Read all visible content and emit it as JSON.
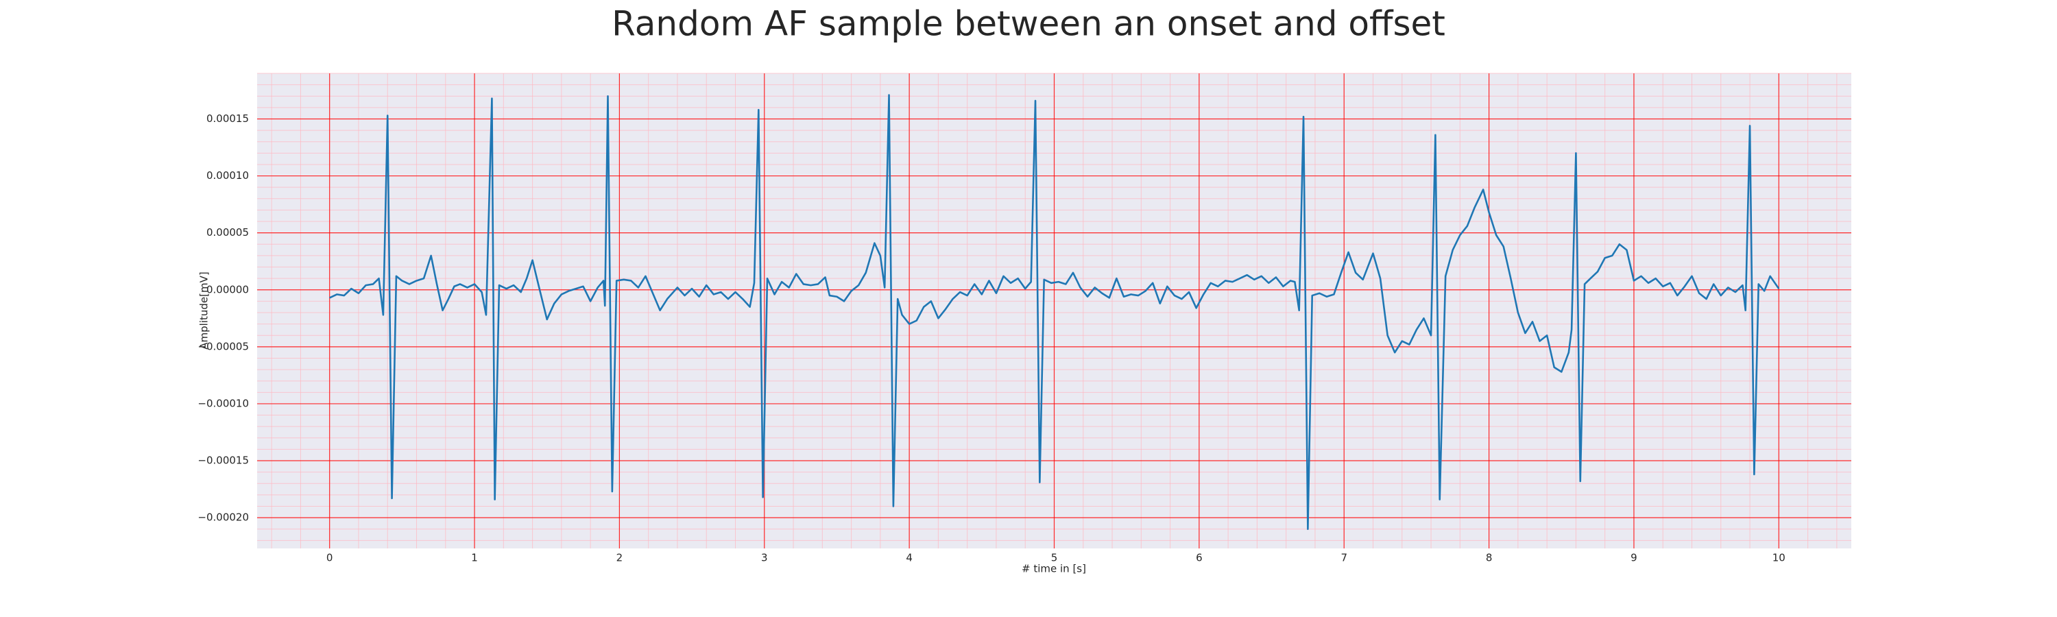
{
  "chart_data": {
    "type": "line",
    "title": "Random AF sample between an onset and offset",
    "xlabel": "# time in [s]",
    "ylabel": "Amplitude[mV]",
    "color": "#1f77b4",
    "background": "#eaeaf2",
    "grid": true,
    "grid_color": "#ff0000",
    "minor_grid": true,
    "minor_grid_color": "#ffb6c1",
    "xlim": [
      -0.5,
      10.5
    ],
    "ylim": [
      -0.000227,
      0.00019
    ],
    "xticks": [
      0,
      1,
      2,
      3,
      4,
      5,
      6,
      7,
      8,
      9,
      10
    ],
    "yticks": [
      {
        "value": -0.0002,
        "label": "−0.00020"
      },
      {
        "value": -0.00015,
        "label": "−0.00015"
      },
      {
        "value": -0.0001,
        "label": "−0.00010"
      },
      {
        "value": -5e-05,
        "label": "−0.00005"
      },
      {
        "value": 0,
        "label": "0.00000"
      },
      {
        "value": 5e-05,
        "label": "0.00005"
      },
      {
        "value": 0.0001,
        "label": "0.00010"
      },
      {
        "value": 0.00015,
        "label": "0.00015"
      }
    ],
    "x": [
      0.0,
      0.05,
      0.1,
      0.15,
      0.2,
      0.25,
      0.3,
      0.34,
      0.37,
      0.4,
      0.43,
      0.46,
      0.5,
      0.55,
      0.6,
      0.65,
      0.7,
      0.74,
      0.78,
      0.82,
      0.86,
      0.9,
      0.95,
      1.0,
      1.05,
      1.08,
      1.12,
      1.14,
      1.17,
      1.22,
      1.27,
      1.32,
      1.36,
      1.4,
      1.44,
      1.5,
      1.55,
      1.6,
      1.65,
      1.7,
      1.75,
      1.8,
      1.85,
      1.89,
      1.9,
      1.92,
      1.95,
      1.98,
      2.03,
      2.08,
      2.13,
      2.18,
      2.23,
      2.28,
      2.33,
      2.4,
      2.45,
      2.5,
      2.55,
      2.6,
      2.65,
      2.7,
      2.75,
      2.8,
      2.85,
      2.9,
      2.93,
      2.96,
      2.99,
      3.02,
      3.07,
      3.12,
      3.17,
      3.22,
      3.27,
      3.32,
      3.37,
      3.42,
      3.45,
      3.5,
      3.55,
      3.6,
      3.65,
      3.7,
      3.76,
      3.8,
      3.83,
      3.86,
      3.89,
      3.92,
      3.95,
      4.0,
      4.05,
      4.1,
      4.15,
      4.2,
      4.25,
      4.3,
      4.35,
      4.4,
      4.45,
      4.5,
      4.55,
      4.6,
      4.65,
      4.7,
      4.75,
      4.8,
      4.84,
      4.87,
      4.9,
      4.93,
      4.98,
      5.03,
      5.08,
      5.13,
      5.18,
      5.23,
      5.28,
      5.33,
      5.38,
      5.43,
      5.48,
      5.53,
      5.58,
      5.63,
      5.68,
      5.73,
      5.78,
      5.83,
      5.88,
      5.93,
      5.98,
      6.03,
      6.08,
      6.13,
      6.18,
      6.23,
      6.28,
      6.33,
      6.38,
      6.43,
      6.48,
      6.53,
      6.58,
      6.63,
      6.66,
      6.69,
      6.72,
      6.75,
      6.78,
      6.83,
      6.88,
      6.93,
      6.98,
      7.03,
      7.08,
      7.13,
      7.2,
      7.25,
      7.3,
      7.35,
      7.4,
      7.45,
      7.5,
      7.55,
      7.6,
      7.63,
      7.66,
      7.7,
      7.75,
      7.8,
      7.85,
      7.9,
      7.96,
      8.0,
      8.05,
      8.1,
      8.15,
      8.2,
      8.25,
      8.3,
      8.35,
      8.4,
      8.45,
      8.5,
      8.55,
      8.57,
      8.6,
      8.63,
      8.66,
      8.7,
      8.75,
      8.8,
      8.85,
      8.9,
      8.95,
      9.0,
      9.05,
      9.1,
      9.15,
      9.2,
      9.25,
      9.3,
      9.35,
      9.4,
      9.45,
      9.5,
      9.55,
      9.6,
      9.65,
      9.7,
      9.75,
      9.77,
      9.8,
      9.83,
      9.86,
      9.9,
      9.94,
      10.0
    ],
    "values": [
      -7e-06,
      -4e-06,
      -5e-06,
      1e-06,
      -3e-06,
      4e-06,
      5e-06,
      1e-05,
      -2.2e-05,
      0.000153,
      -0.000183,
      1.2e-05,
      8e-06,
      5e-06,
      8e-06,
      1e-05,
      3e-05,
      5e-06,
      -1.8e-05,
      -8e-06,
      3e-06,
      5e-06,
      2e-06,
      5e-06,
      -2e-06,
      -2.2e-05,
      0.000168,
      -0.000184,
      4e-06,
      1e-06,
      4e-06,
      -2e-06,
      1e-05,
      2.6e-05,
      5e-06,
      -2.6e-05,
      -1.2e-05,
      -4e-06,
      -1e-06,
      1e-06,
      3e-06,
      -1e-05,
      2e-06,
      8e-06,
      -1.4e-05,
      0.00017,
      -0.000177,
      8e-06,
      9e-06,
      8e-06,
      2e-06,
      1.2e-05,
      -3e-06,
      -1.8e-05,
      -8e-06,
      2e-06,
      -5e-06,
      1e-06,
      -6e-06,
      4e-06,
      -4e-06,
      -2e-06,
      -8e-06,
      -2e-06,
      -8e-06,
      -1.5e-05,
      6e-06,
      0.000158,
      -0.000182,
      1e-05,
      -4e-06,
      7e-06,
      2e-06,
      1.4e-05,
      5e-06,
      4e-06,
      5e-06,
      1.1e-05,
      -5e-06,
      -6e-06,
      -1e-05,
      -1e-06,
      4e-06,
      1.5e-05,
      4.1e-05,
      3e-05,
      2e-06,
      0.000171,
      -0.00019,
      -8e-06,
      -2.2e-05,
      -3e-05,
      -2.7e-05,
      -1.5e-05,
      -1e-05,
      -2.5e-05,
      -1.7e-05,
      -8e-06,
      -2e-06,
      -5e-06,
      5e-06,
      -4e-06,
      8e-06,
      -3e-06,
      1.2e-05,
      6e-06,
      1e-05,
      1e-06,
      7e-06,
      0.000166,
      -0.000169,
      9e-06,
      6e-06,
      7e-06,
      5e-06,
      1.5e-05,
      2e-06,
      -6e-06,
      2e-06,
      -3e-06,
      -7e-06,
      1e-05,
      -6e-06,
      -4e-06,
      -5e-06,
      -1e-06,
      6e-06,
      -1.2e-05,
      3e-06,
      -5e-06,
      -8e-06,
      -2e-06,
      -1.6e-05,
      -4e-06,
      6e-06,
      3e-06,
      8e-06,
      7e-06,
      1e-05,
      1.3e-05,
      9e-06,
      1.2e-05,
      6e-06,
      1.1e-05,
      3e-06,
      8e-06,
      7e-06,
      -1.8e-05,
      0.000152,
      -0.00021,
      -5e-06,
      -3e-06,
      -6e-06,
      -4e-06,
      1.5e-05,
      3.3e-05,
      1.5e-05,
      9e-06,
      3.2e-05,
      1e-05,
      -4e-05,
      -5.5e-05,
      -4.5e-05,
      -4.8e-05,
      -3.5e-05,
      -2.5e-05,
      -4e-05,
      0.000136,
      -0.000184,
      1.2e-05,
      3.5e-05,
      4.8e-05,
      5.6e-05,
      7.2e-05,
      8.8e-05,
      6.8e-05,
      4.8e-05,
      3.8e-05,
      1e-05,
      -2e-05,
      -3.8e-05,
      -2.8e-05,
      -4.5e-05,
      -4e-05,
      -6.8e-05,
      -7.2e-05,
      -5.5e-05,
      -3.5e-05,
      0.00012,
      -0.000168,
      5e-06,
      1e-05,
      1.6e-05,
      2.8e-05,
      3e-05,
      4e-05,
      3.5e-05,
      8e-06,
      1.2e-05,
      6e-06,
      1e-05,
      3e-06,
      6e-06,
      -5e-06,
      3e-06,
      1.2e-05,
      -3e-06,
      -8e-06,
      5e-06,
      -5e-06,
      2e-06,
      -2e-06,
      4e-06,
      -1.8e-05,
      0.000144,
      -0.000162,
      5e-06,
      -1e-06,
      1.2e-05,
      1e-06
    ]
  }
}
